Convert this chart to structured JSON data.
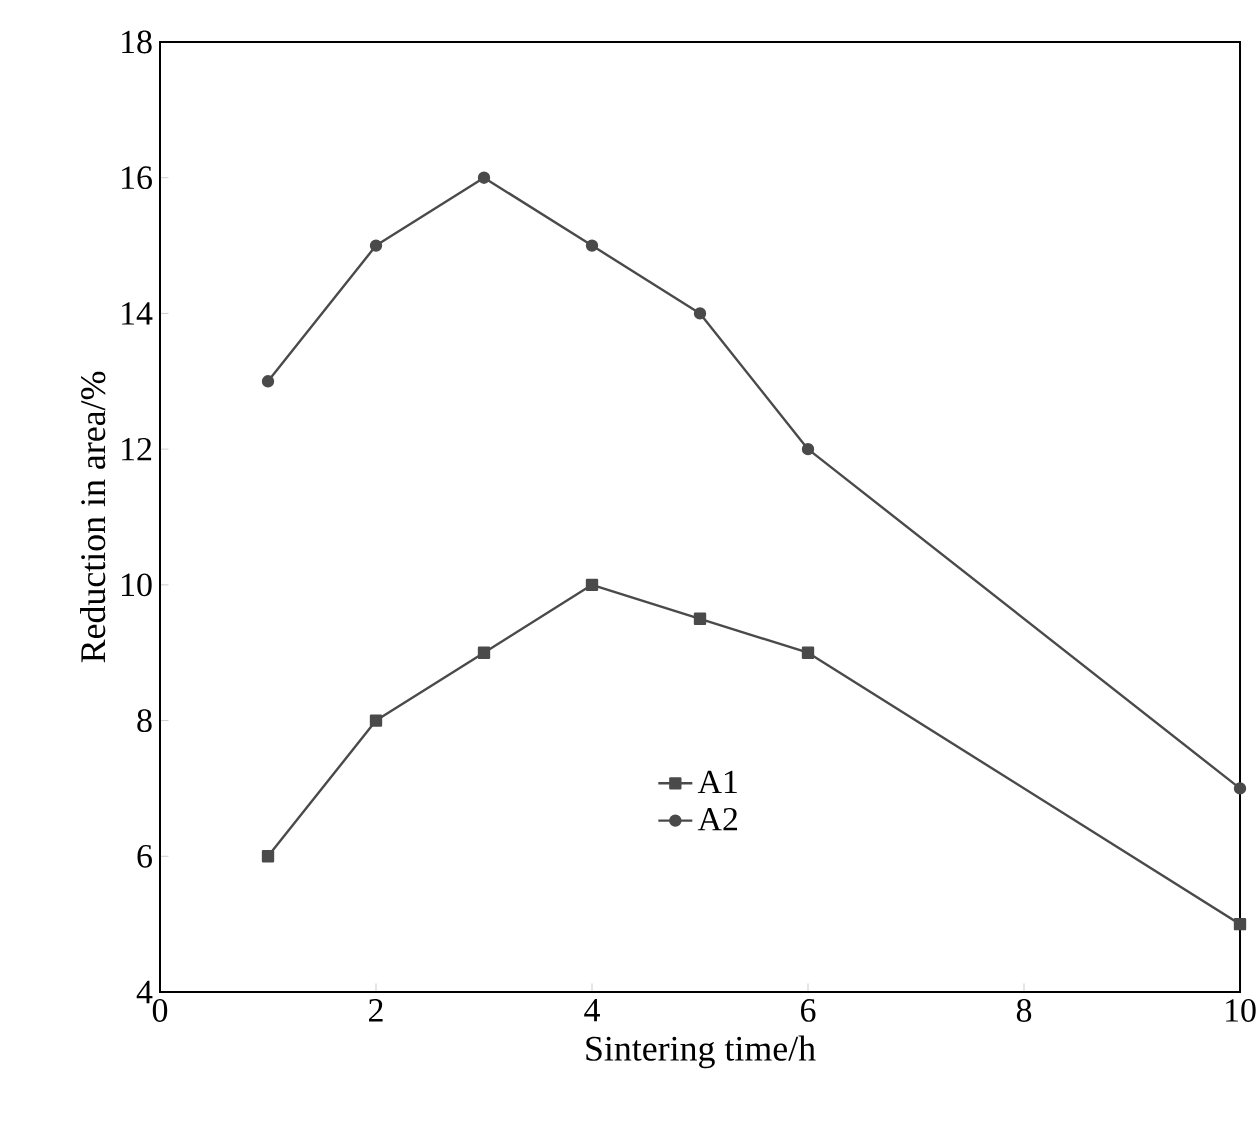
{
  "chart_data": {
    "type": "line",
    "xlabel": "Sintering time/h",
    "ylabel": "Reduction in area/%",
    "x": [
      1,
      2,
      3,
      4,
      5,
      6,
      10
    ],
    "series": [
      {
        "name": "A1",
        "color": "#4a4a4a",
        "marker": "square",
        "values": [
          6,
          8,
          9,
          10,
          9.5,
          9,
          5
        ]
      },
      {
        "name": "A2",
        "color": "#4a4a4a",
        "marker": "circle",
        "values": [
          13,
          15,
          16,
          15,
          14,
          12,
          7
        ]
      }
    ],
    "xlim": [
      0,
      10
    ],
    "ylim": [
      4,
      18
    ],
    "xticks": [
      0,
      2,
      4,
      6,
      8,
      10
    ],
    "yticks": [
      4,
      6,
      8,
      10,
      12,
      14,
      16,
      18
    ],
    "legend": "bottom",
    "grid": false,
    "line_style": "solid"
  }
}
